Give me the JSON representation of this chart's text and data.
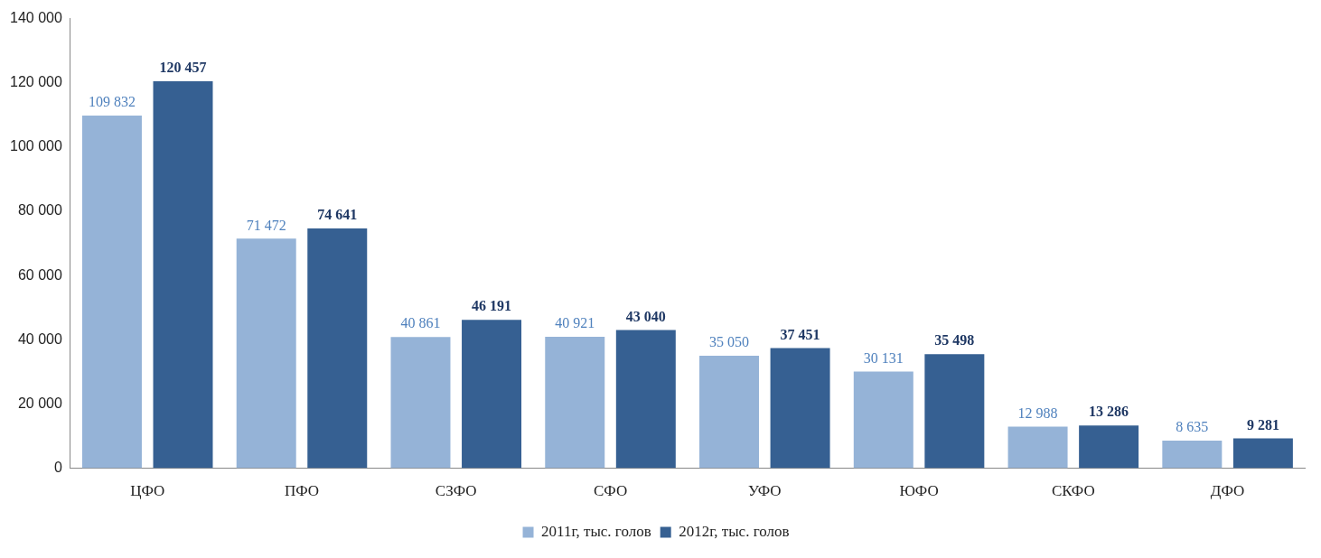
{
  "chart_data": {
    "type": "bar",
    "categories": [
      "ЦФО",
      "ПФО",
      "СЗФО",
      "СФО",
      "УФО",
      "ЮФО",
      "СКФО",
      "ДФО"
    ],
    "series": [
      {
        "name": "2011г, тыс. голов",
        "color": "#95b3d7",
        "values": [
          109832,
          71472,
          40861,
          40921,
          35050,
          30131,
          12988,
          8635
        ],
        "value_labels": [
          "109 832",
          "71 472",
          "40 861",
          "40 921",
          "35 050",
          "30 131",
          "12 988",
          "8 635"
        ]
      },
      {
        "name": "2012г, тыс. голов",
        "color": "#366092",
        "values": [
          120457,
          74641,
          46191,
          43040,
          37451,
          35498,
          13286,
          9281
        ],
        "value_labels": [
          "120 457",
          "74 641",
          "46 191",
          "43 040",
          "37 451",
          "35 498",
          "13 286",
          "9 281"
        ]
      }
    ],
    "ylim": [
      0,
      140000
    ],
    "yticks": [
      {
        "value": 0,
        "label": "0"
      },
      {
        "value": 20000,
        "label": "20 000"
      },
      {
        "value": 40000,
        "label": "40 000"
      },
      {
        "value": 60000,
        "label": "60 000"
      },
      {
        "value": 80000,
        "label": "80 000"
      },
      {
        "value": 100000,
        "label": "100 000"
      },
      {
        "value": 120000,
        "label": "120 000"
      },
      {
        "value": 140000,
        "label": "140 000"
      }
    ],
    "grid": false,
    "legend": "bottom"
  }
}
